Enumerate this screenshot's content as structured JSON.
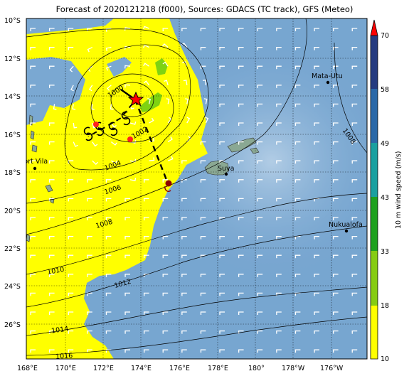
{
  "title": "Forecast of 2020121218 (f000), Sources: GDACS (TC track), GFS (Meteo)",
  "map": {
    "lon_labels": [
      "168°E",
      "170°E",
      "172°E",
      "174°E",
      "176°E",
      "178°E",
      "180°",
      "178°W",
      "176°W"
    ],
    "lat_labels": [
      "10°S",
      "12°S",
      "14°S",
      "16°S",
      "18°S",
      "20°S",
      "22°S",
      "24°S",
      "26°S"
    ],
    "isobars": [
      {
        "label": "1000"
      },
      {
        "label": "1002"
      },
      {
        "label": "1004"
      },
      {
        "label": "1006"
      },
      {
        "label": "1008"
      },
      {
        "label": "1010"
      },
      {
        "label": "1012"
      },
      {
        "label": "1014"
      },
      {
        "label": "1016"
      },
      {
        "label": "1008"
      }
    ],
    "places": [
      {
        "name": "Port Vila"
      },
      {
        "name": "Suva"
      },
      {
        "name": "Mata-Utu"
      },
      {
        "name": "Nukualofa"
      }
    ],
    "colors": {
      "ocean": "#7aa8d2",
      "warning_area": "#ffff00",
      "land": "#8fa89a",
      "track": "#000000",
      "storm": "#ff0000"
    }
  },
  "colorbar": {
    "label": "10 m wind speed (m/s)",
    "ticks": [
      "10",
      "18",
      "33",
      "43",
      "49",
      "58",
      "70"
    ],
    "colors": [
      "#ffff00",
      "#86cc12",
      "#1fa11f",
      "#1aa0a0",
      "#2a68a8",
      "#253b80",
      "#1b2a66",
      "#ff0000"
    ]
  }
}
